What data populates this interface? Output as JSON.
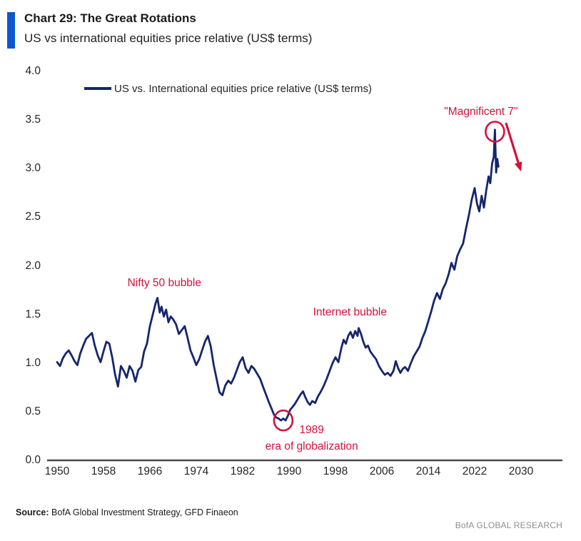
{
  "header": {
    "title": "Chart 29: The Great Rotations",
    "subtitle": "US vs international equities price relative (US$ terms)"
  },
  "legend": {
    "label": "US vs. International equities price relative (US$ terms)",
    "position": "top-left"
  },
  "footer": {
    "source_label": "Source:",
    "source_text": "BofA Global Investment Strategy, GFD Finaeon",
    "brand": "BofA GLOBAL RESEARCH"
  },
  "chart_data": {
    "type": "line",
    "title": "Chart 29: The Great Rotations",
    "subtitle": "US vs international equities price relative (US$ terms)",
    "xlabel": "",
    "ylabel": "",
    "xlim": [
      1950,
      2030
    ],
    "ylim": [
      0.0,
      4.0
    ],
    "grid": false,
    "legend_position": "top-left",
    "x_ticks": [
      [
        1950,
        "1950"
      ],
      [
        1958,
        "1958"
      ],
      [
        1966,
        "1966"
      ],
      [
        1974,
        "1974"
      ],
      [
        1982,
        "1982"
      ],
      [
        1990,
        "1990"
      ],
      [
        1998,
        "1998"
      ],
      [
        2006,
        "2006"
      ],
      [
        2014,
        "2014"
      ],
      [
        2022,
        "2022"
      ],
      [
        2030,
        "2030"
      ]
    ],
    "y_ticks": [
      [
        0,
        "0.0"
      ],
      [
        0.5,
        "0.5"
      ],
      [
        1,
        "1.0"
      ],
      [
        1.5,
        "1.5"
      ],
      [
        2,
        "2.0"
      ],
      [
        2.5,
        "2.5"
      ],
      [
        3,
        "3.0"
      ],
      [
        3.5,
        "3.5"
      ],
      [
        4,
        "4.0"
      ]
    ],
    "series": [
      {
        "name": "US vs. International equities price relative (US$ terms)",
        "color": "#15266B",
        "points": [
          [
            1950.0,
            1.01
          ],
          [
            1950.5,
            0.97
          ],
          [
            1951.0,
            1.05
          ],
          [
            1951.5,
            1.1
          ],
          [
            1952.0,
            1.13
          ],
          [
            1952.5,
            1.08
          ],
          [
            1953.0,
            1.02
          ],
          [
            1953.5,
            0.98
          ],
          [
            1954.0,
            1.1
          ],
          [
            1954.5,
            1.18
          ],
          [
            1955.0,
            1.25
          ],
          [
            1955.5,
            1.28
          ],
          [
            1956.0,
            1.31
          ],
          [
            1956.5,
            1.18
          ],
          [
            1957.0,
            1.08
          ],
          [
            1957.5,
            1.01
          ],
          [
            1958.0,
            1.12
          ],
          [
            1958.5,
            1.22
          ],
          [
            1959.0,
            1.2
          ],
          [
            1959.5,
            1.06
          ],
          [
            1960.0,
            0.88
          ],
          [
            1960.5,
            0.76
          ],
          [
            1961.0,
            0.97
          ],
          [
            1961.5,
            0.92
          ],
          [
            1962.0,
            0.85
          ],
          [
            1962.5,
            0.97
          ],
          [
            1963.0,
            0.92
          ],
          [
            1963.5,
            0.81
          ],
          [
            1964.0,
            0.93
          ],
          [
            1964.5,
            0.96
          ],
          [
            1965.0,
            1.12
          ],
          [
            1965.5,
            1.2
          ],
          [
            1966.0,
            1.38
          ],
          [
            1966.5,
            1.5
          ],
          [
            1967.0,
            1.62
          ],
          [
            1967.3,
            1.67
          ],
          [
            1967.7,
            1.52
          ],
          [
            1968.0,
            1.58
          ],
          [
            1968.4,
            1.48
          ],
          [
            1968.8,
            1.55
          ],
          [
            1969.2,
            1.42
          ],
          [
            1969.6,
            1.48
          ],
          [
            1970.0,
            1.45
          ],
          [
            1970.5,
            1.4
          ],
          [
            1971.0,
            1.3
          ],
          [
            1971.5,
            1.34
          ],
          [
            1972.0,
            1.38
          ],
          [
            1972.5,
            1.26
          ],
          [
            1973.0,
            1.13
          ],
          [
            1973.5,
            1.06
          ],
          [
            1974.0,
            0.98
          ],
          [
            1974.5,
            1.04
          ],
          [
            1975.0,
            1.13
          ],
          [
            1975.5,
            1.22
          ],
          [
            1976.0,
            1.28
          ],
          [
            1976.5,
            1.17
          ],
          [
            1977.0,
            0.98
          ],
          [
            1977.5,
            0.84
          ],
          [
            1978.0,
            0.7
          ],
          [
            1978.5,
            0.67
          ],
          [
            1979.0,
            0.77
          ],
          [
            1979.5,
            0.82
          ],
          [
            1980.0,
            0.79
          ],
          [
            1980.5,
            0.85
          ],
          [
            1981.0,
            0.93
          ],
          [
            1981.5,
            1.01
          ],
          [
            1982.0,
            1.06
          ],
          [
            1982.5,
            0.95
          ],
          [
            1983.0,
            0.9
          ],
          [
            1983.5,
            0.97
          ],
          [
            1984.0,
            0.94
          ],
          [
            1984.5,
            0.89
          ],
          [
            1985.0,
            0.84
          ],
          [
            1985.5,
            0.76
          ],
          [
            1986.0,
            0.68
          ],
          [
            1986.5,
            0.6
          ],
          [
            1987.0,
            0.53
          ],
          [
            1987.4,
            0.47
          ],
          [
            1987.8,
            0.44
          ],
          [
            1988.2,
            0.43
          ],
          [
            1988.6,
            0.41
          ],
          [
            1989.0,
            0.43
          ],
          [
            1989.4,
            0.41
          ],
          [
            1989.8,
            0.46
          ],
          [
            1990.2,
            0.52
          ],
          [
            1990.6,
            0.55
          ],
          [
            1991.0,
            0.58
          ],
          [
            1991.5,
            0.63
          ],
          [
            1992.0,
            0.68
          ],
          [
            1992.4,
            0.71
          ],
          [
            1992.8,
            0.65
          ],
          [
            1993.2,
            0.6
          ],
          [
            1993.6,
            0.57
          ],
          [
            1994.0,
            0.61
          ],
          [
            1994.5,
            0.59
          ],
          [
            1995.0,
            0.66
          ],
          [
            1995.5,
            0.71
          ],
          [
            1996.0,
            0.77
          ],
          [
            1996.5,
            0.84
          ],
          [
            1997.0,
            0.92
          ],
          [
            1997.5,
            1.0
          ],
          [
            1998.0,
            1.06
          ],
          [
            1998.5,
            1.01
          ],
          [
            1999.0,
            1.15
          ],
          [
            1999.4,
            1.24
          ],
          [
            1999.8,
            1.2
          ],
          [
            2000.2,
            1.28
          ],
          [
            2000.6,
            1.32
          ],
          [
            2001.0,
            1.26
          ],
          [
            2001.4,
            1.33
          ],
          [
            2001.8,
            1.28
          ],
          [
            2002.0,
            1.36
          ],
          [
            2002.4,
            1.3
          ],
          [
            2002.8,
            1.22
          ],
          [
            2003.2,
            1.16
          ],
          [
            2003.6,
            1.18
          ],
          [
            2004.0,
            1.12
          ],
          [
            2004.5,
            1.08
          ],
          [
            2005.0,
            1.04
          ],
          [
            2005.5,
            0.97
          ],
          [
            2006.0,
            0.92
          ],
          [
            2006.5,
            0.88
          ],
          [
            2007.0,
            0.9
          ],
          [
            2007.5,
            0.87
          ],
          [
            2008.0,
            0.92
          ],
          [
            2008.4,
            1.02
          ],
          [
            2008.8,
            0.95
          ],
          [
            2009.2,
            0.9
          ],
          [
            2009.6,
            0.94
          ],
          [
            2010.0,
            0.96
          ],
          [
            2010.5,
            0.92
          ],
          [
            2011.0,
            1.0
          ],
          [
            2011.5,
            1.07
          ],
          [
            2012.0,
            1.12
          ],
          [
            2012.5,
            1.17
          ],
          [
            2013.0,
            1.26
          ],
          [
            2013.5,
            1.33
          ],
          [
            2014.0,
            1.43
          ],
          [
            2014.5,
            1.53
          ],
          [
            2015.0,
            1.64
          ],
          [
            2015.5,
            1.72
          ],
          [
            2016.0,
            1.66
          ],
          [
            2016.5,
            1.76
          ],
          [
            2017.0,
            1.82
          ],
          [
            2017.5,
            1.91
          ],
          [
            2018.0,
            2.03
          ],
          [
            2018.5,
            1.96
          ],
          [
            2019.0,
            2.1
          ],
          [
            2019.5,
            2.17
          ],
          [
            2020.0,
            2.23
          ],
          [
            2020.5,
            2.38
          ],
          [
            2021.0,
            2.52
          ],
          [
            2021.5,
            2.68
          ],
          [
            2022.0,
            2.8
          ],
          [
            2022.4,
            2.64
          ],
          [
            2022.8,
            2.56
          ],
          [
            2023.2,
            2.72
          ],
          [
            2023.6,
            2.6
          ],
          [
            2024.0,
            2.78
          ],
          [
            2024.4,
            2.92
          ],
          [
            2024.7,
            2.85
          ],
          [
            2025.0,
            3.05
          ],
          [
            2025.3,
            3.12
          ],
          [
            2025.5,
            3.4
          ],
          [
            2025.7,
            2.96
          ],
          [
            2025.9,
            3.1
          ],
          [
            2026.1,
            3.02
          ]
        ]
      }
    ],
    "annotations": {
      "nifty50": {
        "text": "Nifty 50 bubble",
        "year": 1968.5,
        "value": 1.82
      },
      "internet": {
        "text": "Internet bubble",
        "year": 2000.5,
        "value": 1.52
      },
      "mag7": {
        "text": "\"Magnificent 7\"",
        "year": 2023.1,
        "value": 3.58
      },
      "globalization": {
        "line1": "1989",
        "line2": "era of globalization",
        "year": 1993.9,
        "value": 0.23
      },
      "circles": [
        {
          "id": "circle-1989",
          "year": 1989.0,
          "value": 0.41
        },
        {
          "id": "circle-mag7",
          "year": 2025.5,
          "value": 3.38
        }
      ],
      "arrow": {
        "from_year": 2027.4,
        "from_value": 3.47,
        "to_year": 2030.0,
        "to_value": 2.97
      }
    },
    "colors": {
      "line_navy": "#15266B",
      "annotation_red": "#D2123A",
      "accent_blue": "#0B57D0",
      "axis_line": "#4A4A4A"
    }
  }
}
